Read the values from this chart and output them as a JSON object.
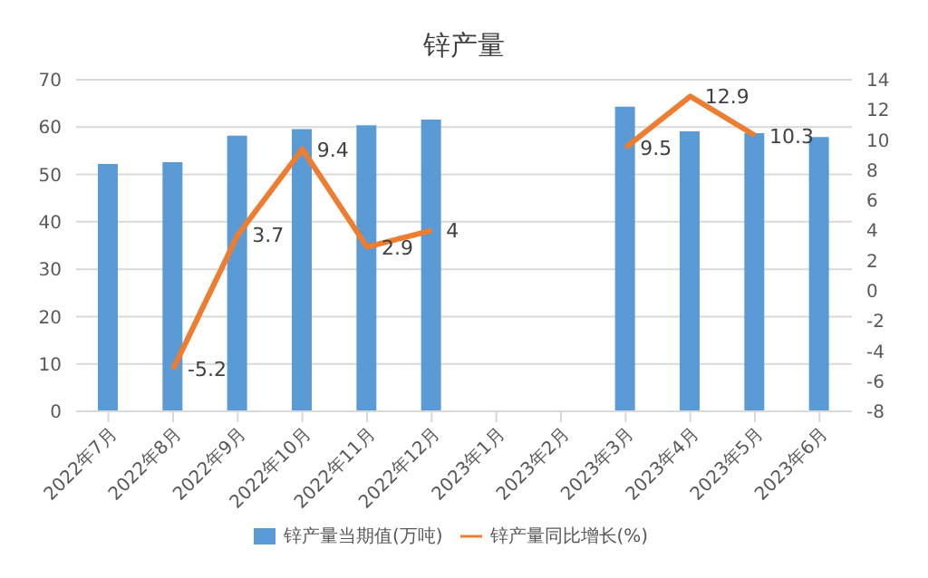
{
  "chart_data": {
    "type": "bar",
    "title": "锌产量",
    "categories": [
      "2022年7月",
      "2022年8月",
      "2022年9月",
      "2022年10月",
      "2022年11月",
      "2022年12月",
      "2023年1月",
      "2023年2月",
      "2023年3月",
      "2023年4月",
      "2023年5月",
      "2023年6月"
    ],
    "series": [
      {
        "name": "锌产量当期值(万吨)",
        "color": "#5b9bd5",
        "values": [
          52.2,
          52.6,
          58.2,
          59.6,
          60.4,
          61.6,
          null,
          null,
          64.3,
          59.1,
          58.7,
          57.9
        ]
      },
      {
        "name": "锌产量同比增长(%)",
        "type": "line",
        "axis": "y2",
        "color": "#ed7d31",
        "values": [
          null,
          -5.2,
          3.7,
          9.4,
          2.9,
          4,
          null,
          null,
          9.5,
          12.9,
          10.3,
          null
        ],
        "value_labels": [
          null,
          "-5.2",
          "3.7",
          "9.4",
          "2.9",
          "4",
          null,
          null,
          "9.5",
          "12.9",
          "10.3",
          null
        ]
      }
    ],
    "ylim": [
      0,
      70
    ],
    "yticks": [
      0,
      10,
      20,
      30,
      40,
      50,
      60,
      70
    ],
    "y2lim": [
      -8,
      14
    ],
    "y2ticks": [
      -8,
      -6,
      -4,
      -2,
      0,
      2,
      4,
      6,
      8,
      10,
      12,
      14
    ],
    "grid": "y",
    "legend": "bottom",
    "marker": "none"
  }
}
